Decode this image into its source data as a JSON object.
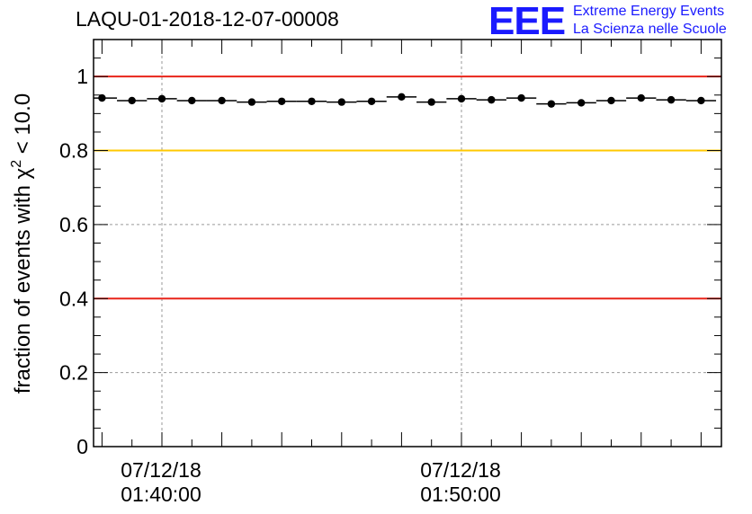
{
  "header": {
    "title": "LAQU-01-2018-12-07-00008"
  },
  "logo": {
    "mark": "EEE",
    "line1": "Extreme Energy Events",
    "line2": "La Scienza nelle Scuole"
  },
  "colors": {
    "red_line": "#e8241a",
    "yellow_line": "#ffc800",
    "marker": "#000000",
    "logo": "#1a1aff"
  },
  "chart_data": {
    "type": "scatter",
    "title": "LAQU-01-2018-12-07-00008",
    "ylabel": "fraction of events with χ² < 10.0",
    "ylabel_parts": {
      "main": "fraction of events with χ",
      "sup": "2",
      "rest": " < 10.0"
    },
    "xlabel": "",
    "ylim": [
      0,
      1.1
    ],
    "yticks": [
      "0",
      "0.2",
      "0.4",
      "0.6",
      "0.8",
      "1"
    ],
    "ytick_values": [
      0,
      0.2,
      0.4,
      0.6,
      0.8,
      1.0
    ],
    "xlim_minutes": [
      -2.2,
      18.6
    ],
    "xticks": [
      {
        "minute": 0,
        "date": "07/12/18",
        "time": "01:40:00"
      },
      {
        "minute": 10,
        "date": "07/12/18",
        "time": "01:50:00"
      }
    ],
    "reference_lines": [
      {
        "y": 1.0,
        "color": "red"
      },
      {
        "y": 0.8,
        "color": "yellow"
      },
      {
        "y": 0.4,
        "color": "red"
      }
    ],
    "bin_width_minutes": 1,
    "x_minutes": [
      -2,
      -1,
      0,
      1,
      2,
      3,
      4,
      5,
      6,
      7,
      8,
      9,
      10,
      11,
      12,
      13,
      14,
      15,
      16,
      17,
      18
    ],
    "values": [
      0.942,
      0.935,
      0.94,
      0.935,
      0.935,
      0.931,
      0.933,
      0.933,
      0.931,
      0.933,
      0.945,
      0.931,
      0.94,
      0.937,
      0.942,
      0.926,
      0.929,
      0.935,
      0.942,
      0.937,
      0.935
    ]
  }
}
